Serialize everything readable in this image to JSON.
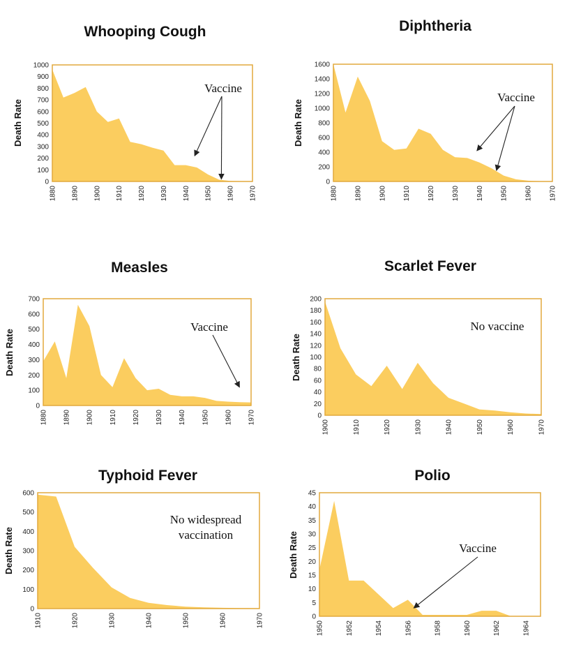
{
  "colors": {
    "fill": "#fbcd5f",
    "frame": "#e2a93d",
    "arrow": "#222222"
  },
  "chart_data": [
    {
      "type": "area",
      "title": "Whooping Cough",
      "ylabel": "Death Rate",
      "xlim": [
        1880,
        1970
      ],
      "ylim": [
        0,
        1000
      ],
      "xticks": [
        1880,
        1890,
        1900,
        1910,
        1920,
        1930,
        1940,
        1950,
        1960,
        1970
      ],
      "yticks": [
        0,
        100,
        200,
        300,
        400,
        500,
        600,
        700,
        800,
        900,
        1000
      ],
      "x": [
        1880,
        1885,
        1890,
        1895,
        1900,
        1905,
        1910,
        1915,
        1920,
        1925,
        1930,
        1935,
        1940,
        1945,
        1950,
        1955,
        1960,
        1965,
        1970
      ],
      "values": [
        960,
        720,
        760,
        810,
        600,
        510,
        540,
        340,
        320,
        290,
        265,
        140,
        140,
        120,
        60,
        15,
        5,
        3,
        2
      ],
      "annotation": {
        "text": "Vaccine",
        "targets": [
          [
            1944,
            220
          ],
          [
            1956,
            20
          ]
        ]
      }
    },
    {
      "type": "area",
      "title": "Diphtheria",
      "ylabel": "Death Rate",
      "xlim": [
        1880,
        1970
      ],
      "ylim": [
        0,
        1600
      ],
      "xticks": [
        1880,
        1890,
        1900,
        1910,
        1920,
        1930,
        1940,
        1950,
        1960,
        1970
      ],
      "yticks": [
        0,
        200,
        400,
        600,
        800,
        1000,
        1200,
        1400,
        1600
      ],
      "x": [
        1880,
        1885,
        1890,
        1895,
        1900,
        1905,
        1910,
        1915,
        1920,
        1925,
        1930,
        1935,
        1940,
        1945,
        1950,
        1955,
        1960,
        1965,
        1970
      ],
      "values": [
        1600,
        940,
        1430,
        1100,
        550,
        430,
        450,
        720,
        650,
        430,
        330,
        320,
        260,
        180,
        80,
        30,
        10,
        5,
        3
      ],
      "annotation": {
        "text": "Vaccine",
        "targets": [
          [
            1939,
            420
          ],
          [
            1947,
            150
          ]
        ]
      }
    },
    {
      "type": "area",
      "title": "Measles",
      "ylabel": "Death Rate",
      "xlim": [
        1880,
        1970
      ],
      "ylim": [
        0,
        700
      ],
      "xticks": [
        1880,
        1890,
        1900,
        1910,
        1920,
        1930,
        1940,
        1950,
        1960,
        1970
      ],
      "yticks": [
        0,
        100,
        200,
        300,
        400,
        500,
        600,
        700
      ],
      "x": [
        1880,
        1885,
        1890,
        1895,
        1900,
        1905,
        1910,
        1915,
        1920,
        1925,
        1930,
        1935,
        1940,
        1945,
        1950,
        1955,
        1960,
        1965,
        1970
      ],
      "values": [
        290,
        420,
        180,
        660,
        520,
        200,
        120,
        310,
        180,
        100,
        110,
        70,
        60,
        60,
        50,
        30,
        25,
        22,
        20
      ],
      "annotation": {
        "text": "Vaccine",
        "targets": [
          [
            1965,
            120
          ]
        ]
      }
    },
    {
      "type": "area",
      "title": "Scarlet Fever",
      "ylabel": "Death Rate",
      "xlim": [
        1900,
        1970
      ],
      "ylim": [
        0,
        200
      ],
      "xticks": [
        1900,
        1910,
        1920,
        1930,
        1940,
        1950,
        1960,
        1970
      ],
      "yticks": [
        0,
        20,
        40,
        60,
        80,
        100,
        120,
        140,
        160,
        180,
        200
      ],
      "x": [
        1900,
        1905,
        1910,
        1915,
        1920,
        1925,
        1930,
        1935,
        1940,
        1945,
        1950,
        1955,
        1960,
        1965,
        1970
      ],
      "values": [
        195,
        115,
        70,
        50,
        85,
        45,
        90,
        55,
        30,
        20,
        10,
        8,
        5,
        3,
        2
      ],
      "annotation": {
        "text": "No vaccine",
        "targets": []
      }
    },
    {
      "type": "area",
      "title": "Typhoid Fever",
      "ylabel": "Death Rate",
      "xlim": [
        1910,
        1970
      ],
      "ylim": [
        0,
        600
      ],
      "xticks": [
        1910,
        1920,
        1930,
        1940,
        1950,
        1960,
        1970
      ],
      "yticks": [
        0,
        100,
        200,
        300,
        400,
        500,
        600
      ],
      "x": [
        1910,
        1915,
        1920,
        1925,
        1930,
        1935,
        1940,
        1945,
        1950,
        1955,
        1960,
        1965,
        1970
      ],
      "values": [
        590,
        580,
        320,
        210,
        110,
        55,
        30,
        18,
        10,
        6,
        4,
        3,
        2
      ],
      "annotation": {
        "text": "No widespread vaccination",
        "targets": []
      }
    },
    {
      "type": "area",
      "title": "Polio",
      "ylabel": "Death Rate",
      "xlim": [
        1950,
        1965
      ],
      "ylim": [
        0,
        45
      ],
      "xticks": [
        1950,
        1952,
        1954,
        1956,
        1958,
        1960,
        1962,
        1964
      ],
      "yticks": [
        0,
        5,
        10,
        15,
        20,
        25,
        30,
        35,
        40,
        45
      ],
      "x": [
        1950,
        1951,
        1952,
        1953,
        1954,
        1955,
        1956,
        1957,
        1958,
        1959,
        1960,
        1961,
        1962,
        1963,
        1964,
        1965
      ],
      "values": [
        17,
        42,
        13,
        13,
        8,
        3,
        6,
        0.5,
        0.5,
        0.5,
        0.5,
        2,
        2,
        0,
        0,
        0
      ],
      "annotation": {
        "text": "Vaccine",
        "targets": [
          [
            1956.4,
            3
          ]
        ]
      }
    }
  ]
}
